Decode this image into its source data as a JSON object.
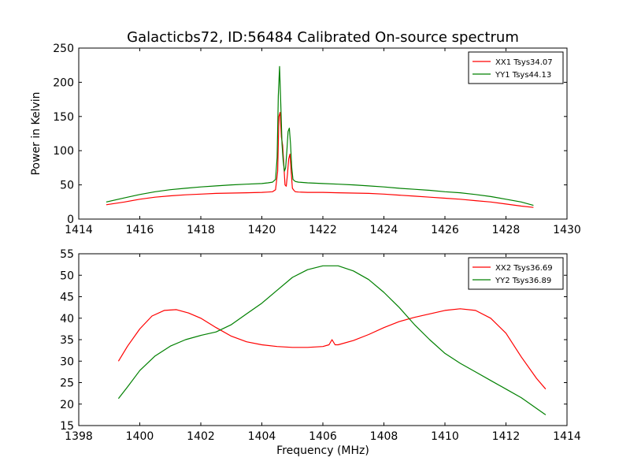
{
  "chart_data": [
    {
      "type": "line",
      "title": "Galacticbs72, ID:56484 Calibrated On-source spectrum",
      "xlabel": "",
      "ylabel": "Power in Kelvin",
      "xlim": [
        1414,
        1430
      ],
      "ylim": [
        0,
        250
      ],
      "xticks": [
        "1414",
        "1416",
        "1418",
        "1420",
        "1422",
        "1424",
        "1426",
        "1428",
        "1430"
      ],
      "yticks": [
        "0",
        "50",
        "100",
        "150",
        "200",
        "250"
      ],
      "grid": false,
      "legend": "top-right",
      "series": [
        {
          "name": "XX1 Tsys34.07",
          "color": "#ff0000",
          "x": [
            1414.9,
            1415.5,
            1416.0,
            1416.5,
            1417.0,
            1417.5,
            1418.0,
            1418.5,
            1419.0,
            1419.5,
            1420.0,
            1420.2,
            1420.35,
            1420.45,
            1420.52,
            1420.56,
            1420.6,
            1420.64,
            1420.68,
            1420.72,
            1420.76,
            1420.8,
            1420.84,
            1420.88,
            1420.92,
            1420.96,
            1421.0,
            1421.05,
            1421.1,
            1421.2,
            1421.5,
            1422.0,
            1422.5,
            1423.0,
            1423.5,
            1424.0,
            1424.5,
            1425.0,
            1425.5,
            1426.0,
            1426.5,
            1427.0,
            1427.5,
            1428.0,
            1428.5,
            1428.9
          ],
          "y": [
            21,
            25,
            29,
            32,
            34,
            35.5,
            36.5,
            37.5,
            38,
            38.5,
            39,
            39.5,
            40,
            43,
            70,
            150,
            156,
            120,
            108,
            80,
            50,
            48,
            65,
            88,
            95,
            70,
            45,
            42,
            40,
            39.5,
            39,
            39,
            38.5,
            38,
            37.5,
            36.5,
            35,
            33.5,
            32,
            30.5,
            29,
            27,
            25,
            22,
            19,
            17
          ]
        },
        {
          "name": "YY1 Tsys44.13",
          "color": "#008000",
          "x": [
            1414.9,
            1415.5,
            1416.0,
            1416.5,
            1417.0,
            1417.5,
            1418.0,
            1418.5,
            1419.0,
            1419.5,
            1420.0,
            1420.2,
            1420.35,
            1420.45,
            1420.5,
            1420.54,
            1420.58,
            1420.62,
            1420.66,
            1420.7,
            1420.74,
            1420.78,
            1420.82,
            1420.86,
            1420.9,
            1420.94,
            1420.98,
            1421.02,
            1421.1,
            1421.2,
            1421.5,
            1422.0,
            1422.5,
            1423.0,
            1423.5,
            1424.0,
            1424.5,
            1425.0,
            1425.5,
            1426.0,
            1426.5,
            1427.0,
            1427.5,
            1428.0,
            1428.5,
            1428.9
          ],
          "y": [
            25,
            31,
            36,
            40,
            43,
            45,
            47,
            48.5,
            50,
            51,
            52,
            53,
            54,
            58,
            90,
            180,
            223,
            170,
            110,
            85,
            70,
            75,
            100,
            128,
            133,
            110,
            75,
            58,
            55,
            54,
            53,
            52,
            51,
            50,
            48.5,
            47,
            45,
            43.5,
            42,
            40,
            38.5,
            36,
            33,
            29,
            25,
            20
          ]
        }
      ]
    },
    {
      "type": "line",
      "title": "",
      "xlabel": "Frequency (MHz)",
      "ylabel": "",
      "xlim": [
        1398,
        1414
      ],
      "ylim": [
        15,
        55
      ],
      "xticks": [
        "1398",
        "1400",
        "1402",
        "1404",
        "1406",
        "1408",
        "1410",
        "1412",
        "1414"
      ],
      "yticks": [
        "15",
        "20",
        "25",
        "30",
        "35",
        "40",
        "45",
        "50",
        "55"
      ],
      "grid": false,
      "legend": "top-right",
      "series": [
        {
          "name": "XX2 Tsys36.69",
          "color": "#ff0000",
          "x": [
            1399.3,
            1399.6,
            1400.0,
            1400.4,
            1400.8,
            1401.2,
            1401.6,
            1402.0,
            1402.5,
            1403.0,
            1403.5,
            1404.0,
            1404.5,
            1405.0,
            1405.5,
            1406.0,
            1406.2,
            1406.3,
            1406.4,
            1406.5,
            1407.0,
            1407.5,
            1408.0,
            1408.5,
            1409.0,
            1409.5,
            1410.0,
            1410.5,
            1411.0,
            1411.5,
            1412.0,
            1412.5,
            1413.0,
            1413.3
          ],
          "y": [
            30,
            33.5,
            37.5,
            40.5,
            41.8,
            42,
            41.2,
            40,
            37.8,
            35.8,
            34.5,
            33.8,
            33.4,
            33.2,
            33.2,
            33.4,
            33.8,
            35,
            33.8,
            33.8,
            34.8,
            36.2,
            37.8,
            39.2,
            40.2,
            41,
            41.8,
            42.2,
            41.8,
            40,
            36.5,
            31,
            26,
            23.5
          ]
        },
        {
          "name": "YY2 Tsys36.89",
          "color": "#008000",
          "x": [
            1399.3,
            1399.6,
            1400.0,
            1400.5,
            1401.0,
            1401.5,
            1402.0,
            1402.5,
            1403.0,
            1403.5,
            1404.0,
            1404.5,
            1405.0,
            1405.5,
            1406.0,
            1406.5,
            1407.0,
            1407.5,
            1408.0,
            1408.5,
            1409.0,
            1409.5,
            1410.0,
            1410.5,
            1411.0,
            1411.5,
            1412.0,
            1412.5,
            1413.0,
            1413.3
          ],
          "y": [
            21.3,
            24,
            27.8,
            31.2,
            33.5,
            35,
            36,
            36.8,
            38.5,
            41,
            43.5,
            46.5,
            49.5,
            51.3,
            52.2,
            52.2,
            51,
            49,
            46,
            42.5,
            38.5,
            35,
            31.8,
            29.5,
            27.5,
            25.5,
            23.5,
            21.5,
            19,
            17.5
          ]
        }
      ]
    }
  ]
}
